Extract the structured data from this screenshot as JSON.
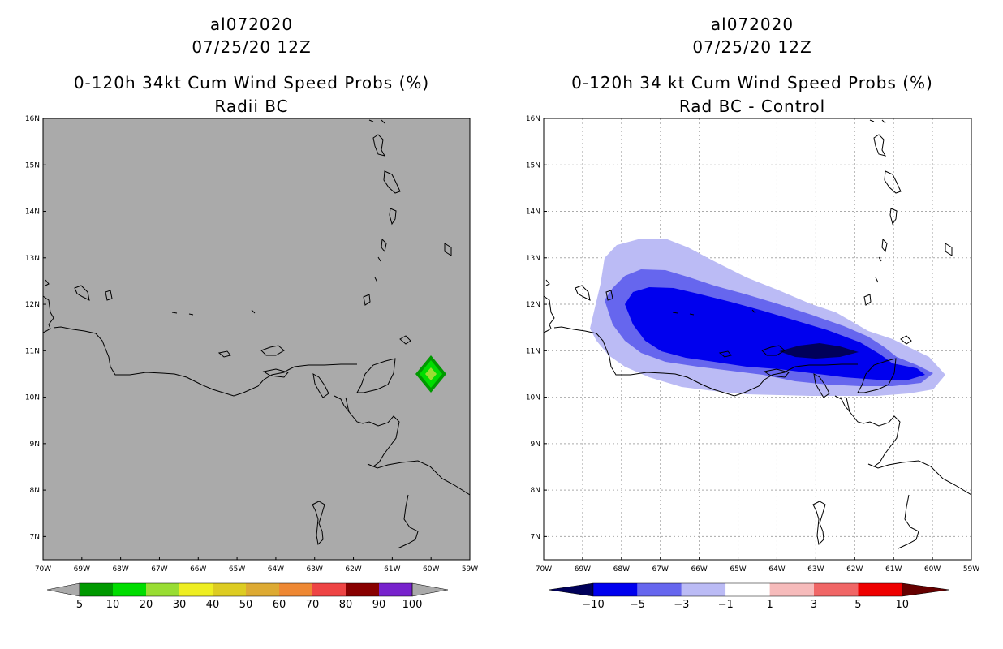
{
  "left": {
    "storm_id": "al072020",
    "datetime": "07/25/20 12Z",
    "title": "0-120h 34kt Cum Wind Speed Probs (%)",
    "subtitle": "Radii BC"
  },
  "right": {
    "storm_id": "al072020",
    "datetime": "07/25/20 12Z",
    "title": "0-120h 34 kt Cum Wind Speed Probs (%)",
    "subtitle": "Rad BC - Control"
  },
  "chart_data": [
    {
      "type": "heatmap",
      "panel": "left",
      "title": "0-120h 34kt Cum Wind Speed Probs (%)",
      "subtitle": "Radii BC",
      "xlim": [
        -70,
        -59
      ],
      "ylim": [
        6.5,
        16
      ],
      "x_ticks": [
        "70W",
        "69W",
        "68W",
        "67W",
        "66W",
        "65W",
        "64W",
        "63W",
        "62W",
        "61W",
        "60W",
        "59W"
      ],
      "y_ticks": [
        "7N",
        "8N",
        "9N",
        "10N",
        "11N",
        "12N",
        "13N",
        "14N",
        "15N",
        "16N"
      ],
      "grid": false,
      "background": "#aaaaaa",
      "feature": {
        "lon": -60.1,
        "lat": 10.5,
        "max_prob": 20,
        "levels": [
          5,
          10,
          20
        ]
      },
      "colorbar": {
        "labels": [
          "5",
          "10",
          "20",
          "30",
          "40",
          "50",
          "60",
          "70",
          "80",
          "90",
          "100"
        ],
        "colors": [
          "#009900",
          "#00dd00",
          "#99dd33",
          "#eeee22",
          "#ddcc22",
          "#ddaa33",
          "#ee8833",
          "#ee4444",
          "#880000",
          "#7722cc"
        ]
      }
    },
    {
      "type": "heatmap",
      "panel": "right",
      "title": "0-120h 34 kt Cum Wind Speed Probs (%)",
      "subtitle": "Rad BC - Control",
      "xlim": [
        -70,
        -59
      ],
      "ylim": [
        6.5,
        16
      ],
      "x_ticks": [
        "70W",
        "69W",
        "68W",
        "67W",
        "66W",
        "65W",
        "64W",
        "63W",
        "62W",
        "61W",
        "60W",
        "59W"
      ],
      "y_ticks": [
        "7N",
        "8N",
        "9N",
        "10N",
        "11N",
        "12N",
        "13N",
        "14N",
        "15N",
        "16N"
      ],
      "grid": true,
      "background": "#ffffff",
      "feature": {
        "description": "negative difference band",
        "lon_range": [
          -69,
          -59.8
        ],
        "lat_range": [
          10.1,
          13.5
        ],
        "min_value": -10
      },
      "colorbar": {
        "labels": [
          "-10",
          "-5",
          "-3",
          "-1",
          "1",
          "3",
          "5",
          "10"
        ],
        "colors": [
          "#00005a",
          "#0000ee",
          "#6666ee",
          "#bbbbf5",
          "#ffffff",
          "#f6bbbb",
          "#f06666",
          "#ee0000",
          "#660000"
        ]
      }
    }
  ]
}
